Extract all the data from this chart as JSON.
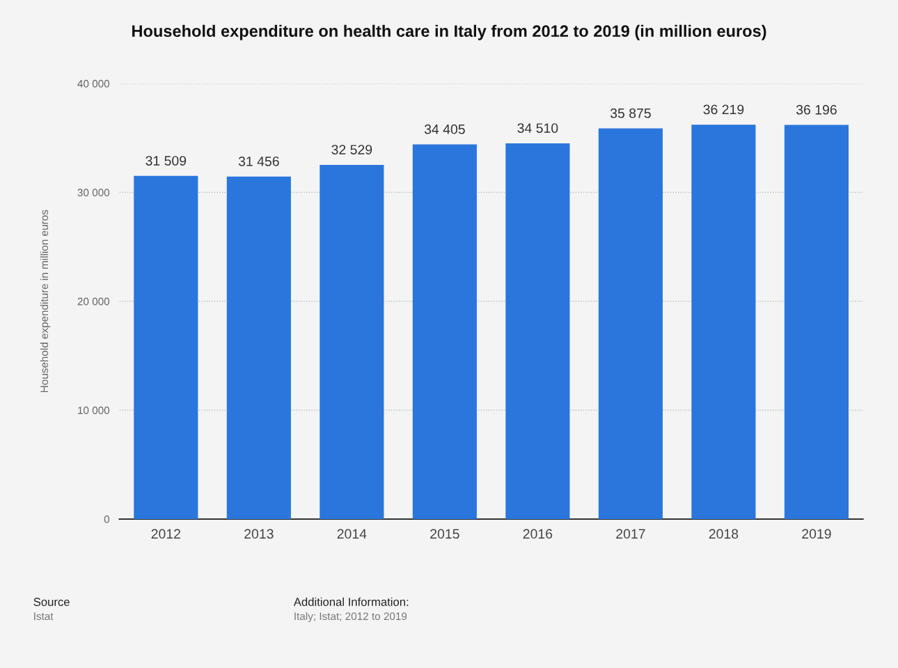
{
  "chart_data": {
    "type": "bar",
    "title": "Household expenditure on health care in Italy from 2012 to 2019 (in million euros)",
    "ylabel": "Household expenditure in million euros",
    "categories": [
      "2012",
      "2013",
      "2014",
      "2015",
      "2016",
      "2017",
      "2018",
      "2019"
    ],
    "values": [
      31509,
      31456,
      32529,
      34405,
      34510,
      35875,
      36219,
      36196
    ],
    "value_labels": [
      "31 509",
      "31 456",
      "32 529",
      "34 405",
      "34 510",
      "35 875",
      "36 219",
      "36 196"
    ],
    "color": "#2a76dd",
    "ylim": [
      0,
      40000
    ],
    "yticks": [
      {
        "value": 0,
        "label": "0"
      },
      {
        "value": 10000,
        "label": "10 000"
      },
      {
        "value": 20000,
        "label": "20 000"
      },
      {
        "value": 30000,
        "label": "30 000"
      },
      {
        "value": 40000,
        "label": "40 000"
      }
    ],
    "grid": "y",
    "annotations": [
      "Source",
      "Istat",
      "Additional Information:",
      "Italy; Istat; 2012 to 2019"
    ]
  }
}
